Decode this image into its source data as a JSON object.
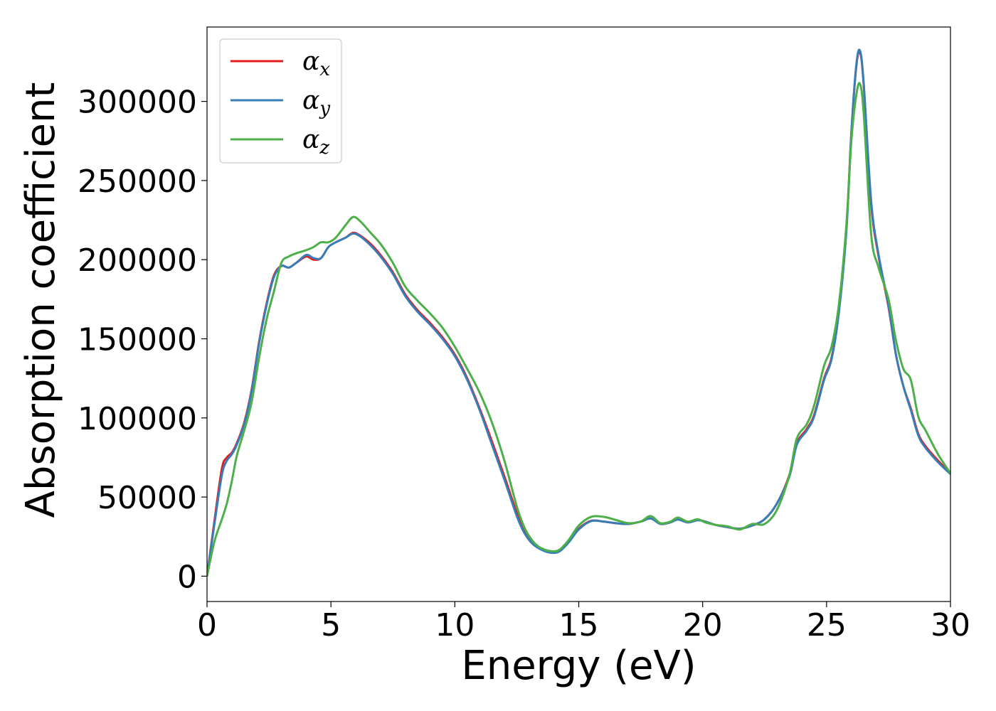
{
  "chart_data": {
    "type": "line",
    "title": "",
    "xlabel": "Energy (eV)",
    "ylabel": "Absorption coefficient",
    "xlim": [
      0,
      30
    ],
    "ylim": [
      -16000,
      347000
    ],
    "xticks": [
      0,
      5,
      10,
      15,
      20,
      25,
      30
    ],
    "yticks": [
      0,
      50000,
      100000,
      150000,
      200000,
      250000,
      300000
    ],
    "grid": false,
    "legend_position": "top-left",
    "series": [
      {
        "name": "α",
        "subscript": "x",
        "color": "#e41a1c",
        "x": [
          0,
          0.3,
          0.6,
          0.8,
          1.0,
          1.2,
          1.5,
          1.8,
          2.1,
          2.4,
          2.7,
          3.0,
          3.3,
          3.6,
          4.0,
          4.3,
          4.6,
          4.9,
          5.2,
          5.6,
          5.9,
          6.2,
          6.6,
          7.0,
          7.5,
          8.0,
          8.5,
          9.0,
          9.5,
          10.0,
          10.5,
          11.0,
          11.5,
          12.0,
          12.5,
          12.8,
          13.1,
          13.4,
          13.8,
          14.2,
          14.6,
          15.0,
          15.5,
          16.0,
          16.5,
          17.0,
          17.5,
          17.9,
          18.3,
          18.7,
          19.0,
          19.4,
          19.8,
          20.1,
          20.5,
          21.0,
          21.5,
          22.0,
          22.5,
          23.0,
          23.5,
          23.8,
          24.2,
          24.5,
          24.9,
          25.2,
          25.5,
          25.8,
          26.0,
          26.2,
          26.35,
          26.5,
          26.8,
          27.1,
          27.5,
          27.8,
          28.1,
          28.4,
          28.7,
          29.0,
          29.5,
          30.0
        ],
        "values": [
          0,
          35000,
          68000,
          75000,
          78000,
          84000,
          97000,
          118000,
          148000,
          172000,
          190000,
          196000,
          195000,
          198000,
          202000,
          200000,
          201000,
          208000,
          211000,
          214000,
          217000,
          215000,
          210000,
          203000,
          192000,
          178000,
          168000,
          160000,
          151000,
          140000,
          125000,
          106000,
          85000,
          63000,
          40000,
          29000,
          22000,
          18000,
          15500,
          16000,
          22000,
          30000,
          35000,
          34500,
          33500,
          33000,
          34500,
          36500,
          33000,
          34000,
          36000,
          34000,
          35500,
          34500,
          32500,
          31000,
          30000,
          32000,
          36000,
          46000,
          64000,
          84000,
          93000,
          102000,
          125000,
          138000,
          168000,
          220000,
          280000,
          322000,
          331000,
          310000,
          235000,
          202000,
          170000,
          140000,
          120000,
          106000,
          90000,
          82000,
          73000,
          65000
        ]
      },
      {
        "name": "α",
        "subscript": "y",
        "color": "#377eb8",
        "x": [
          0,
          0.3,
          0.6,
          0.8,
          1.0,
          1.2,
          1.5,
          1.8,
          2.1,
          2.4,
          2.7,
          3.0,
          3.3,
          3.6,
          4.0,
          4.3,
          4.6,
          4.9,
          5.2,
          5.6,
          5.9,
          6.2,
          6.6,
          7.0,
          7.5,
          8.0,
          8.5,
          9.0,
          9.5,
          10.0,
          10.5,
          11.0,
          11.5,
          12.0,
          12.5,
          12.8,
          13.1,
          13.4,
          13.8,
          14.2,
          14.6,
          15.0,
          15.5,
          16.0,
          16.5,
          17.0,
          17.5,
          17.9,
          18.3,
          18.7,
          19.0,
          19.4,
          19.8,
          20.1,
          20.5,
          21.0,
          21.5,
          22.0,
          22.5,
          23.0,
          23.5,
          23.8,
          24.2,
          24.5,
          24.9,
          25.2,
          25.5,
          25.8,
          26.0,
          26.2,
          26.35,
          26.5,
          26.8,
          27.1,
          27.5,
          27.8,
          28.1,
          28.4,
          28.7,
          29.0,
          29.5,
          30.0
        ],
        "values": [
          0,
          33000,
          64000,
          73000,
          77000,
          83000,
          96000,
          117000,
          147000,
          171000,
          189000,
          196000,
          195000,
          198000,
          203000,
          201000,
          201000,
          208000,
          211000,
          214000,
          216500,
          214500,
          209000,
          202000,
          191000,
          177000,
          167000,
          159000,
          150000,
          139000,
          124000,
          105000,
          83000,
          61000,
          38000,
          27500,
          21000,
          17500,
          15000,
          15500,
          21500,
          29500,
          34800,
          34500,
          33500,
          33000,
          34500,
          36500,
          33000,
          34000,
          35800,
          34000,
          35300,
          34500,
          32500,
          31000,
          30000,
          32000,
          36000,
          46000,
          63000,
          83000,
          92000,
          101000,
          124000,
          137000,
          167000,
          218000,
          280000,
          323000,
          332000,
          311000,
          237000,
          203000,
          171000,
          140000,
          120000,
          105000,
          89000,
          81000,
          72000,
          64500
        ]
      },
      {
        "name": "α",
        "subscript": "z",
        "color": "#4daf4a",
        "x": [
          0,
          0.3,
          0.6,
          0.8,
          1.0,
          1.2,
          1.5,
          1.8,
          2.1,
          2.4,
          2.7,
          3.0,
          3.3,
          3.6,
          4.0,
          4.3,
          4.6,
          4.9,
          5.2,
          5.6,
          5.9,
          6.2,
          6.6,
          7.0,
          7.5,
          8.0,
          8.5,
          9.0,
          9.5,
          10.0,
          10.5,
          11.0,
          11.5,
          12.0,
          12.5,
          12.8,
          13.1,
          13.4,
          13.8,
          14.2,
          14.6,
          15.0,
          15.5,
          16.0,
          16.5,
          17.0,
          17.5,
          17.9,
          18.3,
          18.7,
          19.0,
          19.4,
          19.8,
          20.1,
          20.5,
          21.0,
          21.5,
          22.0,
          22.5,
          23.0,
          23.5,
          23.8,
          24.2,
          24.5,
          24.9,
          25.2,
          25.5,
          25.8,
          26.0,
          26.2,
          26.35,
          26.5,
          26.8,
          27.1,
          27.5,
          27.8,
          28.1,
          28.4,
          28.7,
          29.0,
          29.5,
          30.0
        ],
        "values": [
          0,
          22000,
          36000,
          46000,
          60000,
          76000,
          92000,
          110000,
          138000,
          162000,
          180000,
          198000,
          202000,
          204000,
          206000,
          208000,
          211000,
          211000,
          214000,
          222000,
          227000,
          224000,
          217000,
          210000,
          198000,
          183000,
          174000,
          166000,
          157000,
          145000,
          131000,
          116000,
          97000,
          73000,
          44000,
          31000,
          23000,
          18500,
          16000,
          16500,
          23000,
          32000,
          37500,
          37500,
          35500,
          33500,
          34500,
          38000,
          33500,
          34500,
          37000,
          34500,
          36000,
          34000,
          32500,
          31500,
          29500,
          33000,
          33000,
          42000,
          64000,
          87000,
          96000,
          108000,
          133000,
          145000,
          172000,
          222000,
          275000,
          304000,
          311000,
          292000,
          216000,
          195000,
          175000,
          149000,
          131000,
          124000,
          101000,
          92000,
          77000,
          65000
        ]
      }
    ]
  }
}
